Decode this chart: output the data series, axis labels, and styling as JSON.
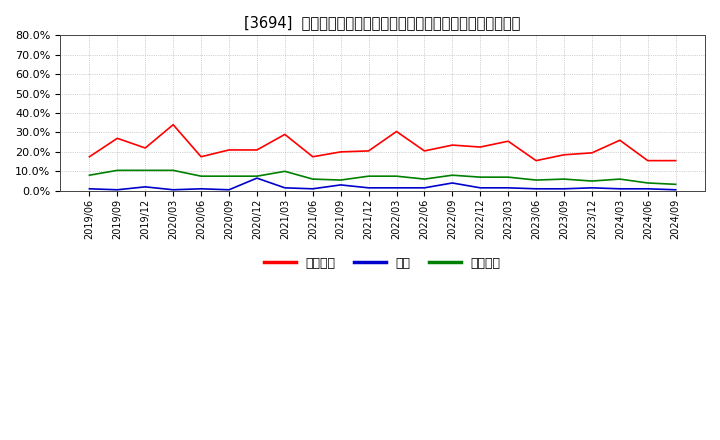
{
  "title": "[3694]  売上債権、在庫、買入債務の総資産に対する比率の推移",
  "ylim": [
    0.0,
    0.8
  ],
  "yticks": [
    0.0,
    0.1,
    0.2,
    0.3,
    0.4,
    0.5,
    0.6,
    0.7,
    0.8
  ],
  "legend_labels": [
    "売上債権",
    "在庫",
    "買入債務"
  ],
  "legend_colors": [
    "#ff0000",
    "#0000cc",
    "#008000"
  ],
  "background_color": "#ffffff",
  "plot_bg_color": "#ffffff",
  "grid_color": "#aaaaaa",
  "dates": [
    "2019/06",
    "2019/09",
    "2019/12",
    "2020/03",
    "2020/06",
    "2020/09",
    "2020/12",
    "2021/03",
    "2021/06",
    "2021/09",
    "2021/12",
    "2022/03",
    "2022/06",
    "2022/09",
    "2022/12",
    "2023/03",
    "2023/06",
    "2023/09",
    "2023/12",
    "2024/03",
    "2024/06",
    "2024/09"
  ],
  "series_receivables": [
    0.175,
    0.27,
    0.22,
    0.34,
    0.175,
    0.21,
    0.21,
    0.29,
    0.175,
    0.2,
    0.205,
    0.305,
    0.205,
    0.235,
    0.225,
    0.255,
    0.155,
    0.185,
    0.195,
    0.26,
    0.155,
    0.155
  ],
  "series_inventory": [
    0.01,
    0.005,
    0.02,
    0.005,
    0.01,
    0.005,
    0.065,
    0.015,
    0.01,
    0.03,
    0.015,
    0.015,
    0.015,
    0.04,
    0.015,
    0.015,
    0.01,
    0.01,
    0.015,
    0.01,
    0.01,
    0.005
  ],
  "series_payables": [
    0.08,
    0.105,
    0.105,
    0.105,
    0.075,
    0.075,
    0.075,
    0.1,
    0.06,
    0.055,
    0.075,
    0.075,
    0.06,
    0.08,
    0.07,
    0.07,
    0.055,
    0.06,
    0.05,
    0.06,
    0.04,
    0.033
  ]
}
